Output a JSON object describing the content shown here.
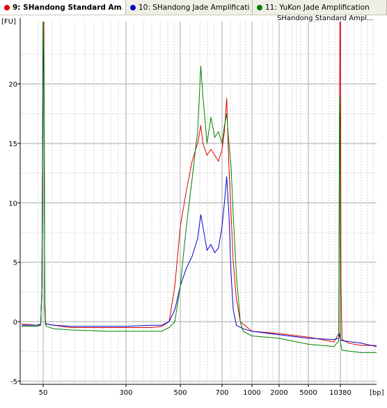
{
  "tabs": [
    {
      "label": "9: SHandong Standard Am...",
      "color": "#e00000",
      "active": true
    },
    {
      "label": "10: SHandong Jade Amplificati...",
      "color": "#0000d0",
      "active": false
    },
    {
      "label": "11: YuKon Jade Amplification",
      "color": "#008000",
      "active": false
    }
  ],
  "sample_name": "SHandong Standard Ampl...",
  "chart_data": {
    "type": "line",
    "ylabel": "[FU]",
    "xlabel": "[bp]",
    "y_ticks": [
      -5,
      0,
      5,
      10,
      15,
      20
    ],
    "ylim": [
      -5,
      25
    ],
    "x_tick_labels": [
      "50",
      "300",
      "500",
      "700",
      "1000",
      "2000",
      "5000",
      "10380"
    ],
    "x_scale": "ladder (non-linear)",
    "grid": true,
    "series": [
      {
        "color": "#e00000",
        "points": [
          [
            35,
            -0.2
          ],
          [
            45,
            -0.3
          ],
          [
            48,
            -0.3
          ],
          [
            49,
            3
          ],
          [
            50,
            28
          ],
          [
            51,
            25
          ],
          [
            52,
            2
          ],
          [
            53,
            -0.1
          ],
          [
            55,
            -0.2
          ],
          [
            65,
            -0.3
          ],
          [
            100,
            -0.5
          ],
          [
            200,
            -0.5
          ],
          [
            300,
            -0.5
          ],
          [
            380,
            -0.5
          ],
          [
            420,
            -0.4
          ],
          [
            450,
            0
          ],
          [
            475,
            3
          ],
          [
            500,
            8
          ],
          [
            525,
            11
          ],
          [
            550,
            13.5
          ],
          [
            575,
            15
          ],
          [
            590,
            16.5
          ],
          [
            600,
            15
          ],
          [
            620,
            14
          ],
          [
            640,
            14.5
          ],
          [
            660,
            14
          ],
          [
            680,
            13.5
          ],
          [
            700,
            14.5
          ],
          [
            720,
            16
          ],
          [
            740,
            18.8
          ],
          [
            760,
            13
          ],
          [
            780,
            9
          ],
          [
            800,
            5
          ],
          [
            830,
            2
          ],
          [
            870,
            0
          ],
          [
            1000,
            -0.8
          ],
          [
            2000,
            -1
          ],
          [
            5000,
            -1.3
          ],
          [
            9000,
            -1.7
          ],
          [
            10000,
            -1
          ],
          [
            10200,
            20
          ],
          [
            10300,
            26
          ],
          [
            10400,
            27
          ],
          [
            10500,
            3
          ],
          [
            10700,
            -1.5
          ],
          [
            12000,
            -1.8
          ],
          [
            15000,
            -2
          ],
          [
            20000,
            -2
          ]
        ]
      },
      {
        "color": "#0000d0",
        "points": [
          [
            35,
            -0.3
          ],
          [
            45,
            -0.3
          ],
          [
            48,
            -0.2
          ],
          [
            49,
            3
          ],
          [
            50,
            25
          ],
          [
            51,
            20
          ],
          [
            52,
            1
          ],
          [
            53,
            -0.2
          ],
          [
            55,
            -0.2
          ],
          [
            65,
            -0.3
          ],
          [
            100,
            -0.4
          ],
          [
            200,
            -0.4
          ],
          [
            300,
            -0.4
          ],
          [
            380,
            -0.3
          ],
          [
            420,
            -0.3
          ],
          [
            450,
            0
          ],
          [
            475,
            1
          ],
          [
            500,
            3
          ],
          [
            525,
            4.5
          ],
          [
            550,
            5.5
          ],
          [
            575,
            7
          ],
          [
            590,
            9
          ],
          [
            600,
            8
          ],
          [
            620,
            6
          ],
          [
            640,
            6.5
          ],
          [
            660,
            5.8
          ],
          [
            680,
            6.2
          ],
          [
            700,
            8
          ],
          [
            720,
            10
          ],
          [
            740,
            12.2
          ],
          [
            760,
            9
          ],
          [
            780,
            4
          ],
          [
            800,
            1
          ],
          [
            830,
            -0.3
          ],
          [
            900,
            -0.6
          ],
          [
            1000,
            -0.8
          ],
          [
            2000,
            -1.1
          ],
          [
            5000,
            -1.4
          ],
          [
            9000,
            -1.5
          ],
          [
            10000,
            -1.4
          ],
          [
            10200,
            -1
          ],
          [
            10300,
            -1.3
          ],
          [
            10400,
            -1.5
          ],
          [
            10700,
            -1.6
          ],
          [
            15000,
            -1.8
          ],
          [
            20000,
            -2.1
          ]
        ]
      },
      {
        "color": "#008000",
        "points": [
          [
            35,
            -0.4
          ],
          [
            45,
            -0.4
          ],
          [
            48,
            -0.3
          ],
          [
            49,
            3
          ],
          [
            50,
            26
          ],
          [
            51,
            22
          ],
          [
            52,
            1
          ],
          [
            53,
            -0.3
          ],
          [
            55,
            -0.4
          ],
          [
            65,
            -0.6
          ],
          [
            100,
            -0.7
          ],
          [
            200,
            -0.8
          ],
          [
            300,
            -0.8
          ],
          [
            380,
            -0.8
          ],
          [
            420,
            -0.8
          ],
          [
            450,
            -0.5
          ],
          [
            475,
            0
          ],
          [
            500,
            3
          ],
          [
            525,
            8
          ],
          [
            550,
            12
          ],
          [
            575,
            16
          ],
          [
            590,
            21.5
          ],
          [
            600,
            19
          ],
          [
            620,
            15
          ],
          [
            640,
            17.2
          ],
          [
            660,
            15.5
          ],
          [
            680,
            16
          ],
          [
            700,
            15
          ],
          [
            720,
            16.5
          ],
          [
            740,
            17.5
          ],
          [
            760,
            15
          ],
          [
            780,
            13
          ],
          [
            800,
            9
          ],
          [
            830,
            4
          ],
          [
            870,
            0
          ],
          [
            900,
            -0.8
          ],
          [
            1000,
            -1.2
          ],
          [
            2000,
            -1.4
          ],
          [
            5000,
            -1.9
          ],
          [
            9000,
            -2.1
          ],
          [
            10000,
            -1.6
          ],
          [
            10200,
            19
          ],
          [
            10300,
            17
          ],
          [
            10400,
            -1.8
          ],
          [
            10700,
            -2.4
          ],
          [
            15000,
            -2.6
          ],
          [
            20000,
            -2.6
          ]
        ]
      }
    ]
  }
}
